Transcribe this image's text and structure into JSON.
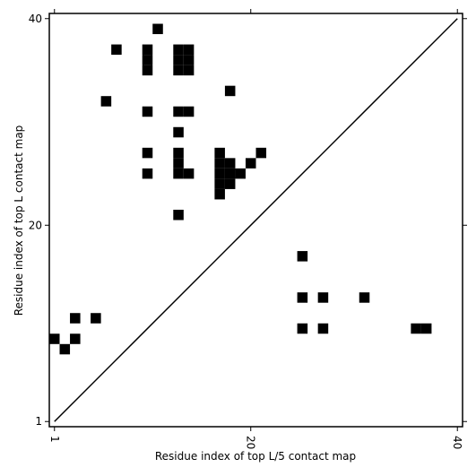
{
  "chart_data": {
    "type": "contact_map",
    "xlabel": "Residue index of top L/5 contact map",
    "ylabel": "Residue index of top L contact map",
    "x": [
      11,
      7,
      10,
      10,
      10,
      13,
      13,
      13,
      14,
      14,
      14,
      18,
      6,
      10,
      13,
      14,
      13,
      10,
      13,
      13,
      13,
      14,
      10,
      17,
      17,
      17,
      17,
      17,
      18,
      18,
      18,
      19,
      20,
      21,
      13,
      25,
      25,
      27,
      31,
      25,
      27,
      36,
      37,
      3,
      5,
      1,
      3,
      2
    ],
    "y": [
      39,
      37,
      37,
      36,
      35,
      37,
      36,
      35,
      37,
      36,
      35,
      33,
      32,
      31,
      31,
      31,
      29,
      27,
      27,
      26,
      25,
      25,
      25,
      27,
      26,
      25,
      24,
      23,
      26,
      25,
      24,
      25,
      26,
      27,
      21,
      17,
      13,
      13,
      13,
      10,
      10,
      10,
      10,
      11,
      11,
      9,
      9,
      8
    ],
    "color": "#000000",
    "xlim": [
      0.5,
      40.5
    ],
    "ylim": [
      0.5,
      40.5
    ],
    "xticks": [
      1,
      20,
      40
    ],
    "yticks": [
      1,
      20,
      40
    ],
    "diagonal": true
  }
}
